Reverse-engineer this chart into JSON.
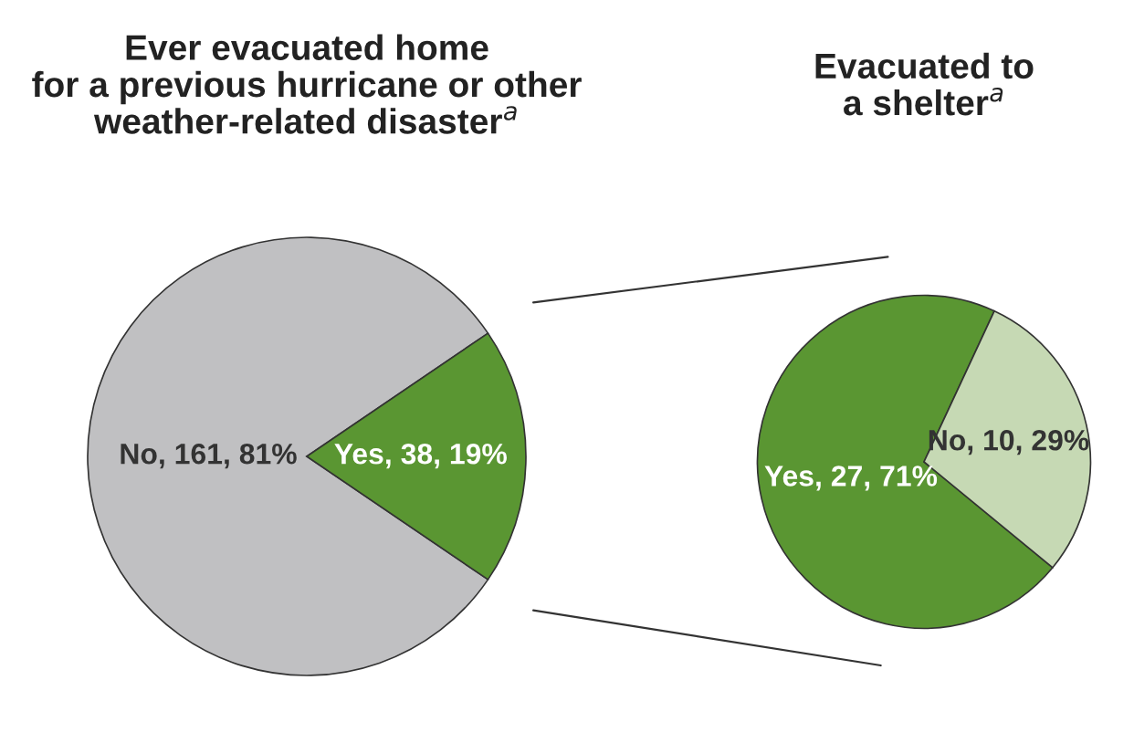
{
  "chart_data": [
    {
      "type": "pie",
      "title": "Ever evacuated home\nfor a previous hurricane or other\nweather-related disaster$^{a}$",
      "categories": [
        "No, 161, 81%",
        "Yes, 38, 19%"
      ],
      "values": [
        81,
        19
      ],
      "colors": [
        "#c0c0c2",
        "#5a9632"
      ]
    },
    {
      "type": "pie",
      "title": "Evacuated to\na shelter$^{a}$",
      "categories": [
        "Yes, 27, 71%",
        "No, 10, 29%"
      ],
      "values": [
        71,
        29
      ],
      "colors": [
        "#5a9632",
        "#c6d9b4"
      ]
    }
  ]
}
